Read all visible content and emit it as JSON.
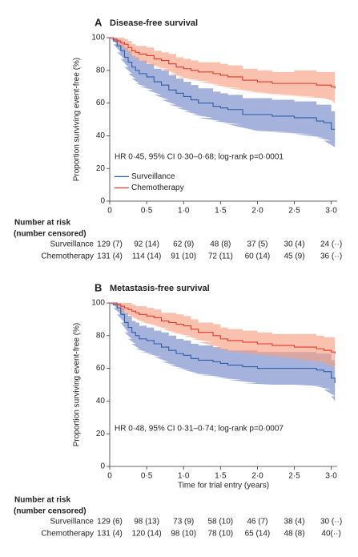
{
  "chart_data": [
    {
      "type": "line",
      "step": "post",
      "panel": "A",
      "title": "Disease-free survival",
      "ylabel": "Proportion surviving event-free (%)",
      "annotation": "HR 0·45, 95% CI 0·30–0·68; log-rank p=0·0001",
      "legend": "lower-left",
      "xlim": [
        0,
        3.08
      ],
      "ylim": [
        0,
        100
      ],
      "xticks": [
        0,
        {
          "value": 0.5,
          "label": "0·5"
        },
        {
          "value": 1,
          "label": "1·0"
        },
        {
          "value": 1.5,
          "label": "1·5"
        },
        {
          "value": 2,
          "label": "2·0"
        },
        {
          "value": 2.5,
          "label": "2·5"
        },
        {
          "value": 3,
          "label": "3·0"
        }
      ],
      "yticks": [
        0,
        20,
        40,
        60,
        80,
        100
      ],
      "x": [
        0,
        0.05,
        0.1,
        0.15,
        0.2,
        0.25,
        0.3,
        0.35,
        0.4,
        0.5,
        0.6,
        0.7,
        0.8,
        0.9,
        1.0,
        1.1,
        1.2,
        1.4,
        1.5,
        1.6,
        1.8,
        2.0,
        2.2,
        2.5,
        2.8,
        2.9,
        3.0,
        3.05
      ],
      "series": [
        {
          "name": "Surveillance",
          "color": "#2f5ea8",
          "band_color": "#7389c9",
          "values": [
            100,
            98,
            95,
            92,
            88,
            85,
            82,
            80,
            78,
            76,
            73,
            71,
            68,
            66,
            64,
            62,
            60,
            58,
            57,
            56,
            53,
            53,
            52,
            51,
            49,
            48,
            44,
            44
          ],
          "ci_upper": [
            100,
            100,
            99,
            97,
            94,
            92,
            89,
            88,
            86,
            84,
            81,
            80,
            77,
            75,
            73,
            71,
            69,
            67,
            66,
            65,
            63,
            63,
            62,
            61,
            59,
            59,
            55,
            55
          ],
          "ci_lower": [
            100,
            96,
            91,
            87,
            82,
            78,
            75,
            72,
            70,
            68,
            65,
            62,
            59,
            57,
            55,
            53,
            51,
            49,
            48,
            47,
            43,
            43,
            42,
            41,
            39,
            37,
            33,
            33
          ]
        },
        {
          "name": "Chemotherapy",
          "color": "#e2382b",
          "band_color": "#f7a083",
          "values": [
            100,
            99,
            98,
            97,
            96,
            94,
            92,
            91,
            90,
            89,
            87,
            86,
            84,
            82,
            81,
            80,
            79,
            78,
            77,
            76,
            74,
            73,
            72,
            72,
            71,
            71,
            70,
            69
          ],
          "ci_upper": [
            100,
            100,
            100,
            100,
            99,
            98,
            96,
            95,
            95,
            94,
            92,
            91,
            90,
            88,
            87,
            86,
            85,
            85,
            84,
            83,
            81,
            80,
            79,
            80,
            79,
            79,
            79,
            78
          ],
          "ci_lower": [
            100,
            98,
            96,
            94,
            93,
            90,
            88,
            87,
            85,
            84,
            82,
            81,
            78,
            76,
            75,
            74,
            73,
            71,
            70,
            69,
            67,
            66,
            65,
            64,
            63,
            63,
            61,
            60
          ]
        }
      ],
      "risk_table": {
        "title": [
          "Number at risk",
          "(number censored)"
        ],
        "rows": [
          {
            "name": "Surveillance",
            "values": [
              "129 (7)",
              "92 (14)",
              "62 (9)",
              "48 (8)",
              "37 (5)",
              "30 (4)",
              "24 (··)"
            ]
          },
          {
            "name": "Chemotherapy",
            "values": [
              "131 (4)",
              "114 (14)",
              "91 (10)",
              "72 (11)",
              "60 (14)",
              "45 (9)",
              "36 (··)"
            ]
          }
        ]
      }
    },
    {
      "type": "line",
      "step": "post",
      "panel": "B",
      "title": "Metastasis-free survival",
      "ylabel": "Proportion surviving event-free (%)",
      "xlabel": "Time for trial entry (years)",
      "annotation": "HR 0·48, 95% CI 0·31–0·74; log-rank p=0·0007",
      "xlim": [
        0,
        3.08
      ],
      "ylim": [
        0,
        100
      ],
      "xticks": [
        0,
        {
          "value": 0.5,
          "label": "0·5"
        },
        {
          "value": 1,
          "label": "1·0"
        },
        {
          "value": 1.5,
          "label": "1·5"
        },
        {
          "value": 2,
          "label": "2·0"
        },
        {
          "value": 2.5,
          "label": "2·5"
        },
        {
          "value": 3,
          "label": "3·0"
        }
      ],
      "yticks": [
        0,
        20,
        40,
        60,
        80,
        100
      ],
      "x": [
        0,
        0.05,
        0.1,
        0.15,
        0.2,
        0.25,
        0.3,
        0.35,
        0.4,
        0.5,
        0.6,
        0.7,
        0.8,
        0.9,
        1.0,
        1.1,
        1.2,
        1.4,
        1.5,
        1.6,
        1.8,
        2.0,
        2.2,
        2.5,
        2.8,
        2.9,
        3.0,
        3.05
      ],
      "series": [
        {
          "color": "#2f5ea8",
          "band_color": "#7389c9",
          "values": [
            100,
            99,
            97,
            93,
            88,
            85,
            82,
            80,
            78,
            77,
            75,
            73,
            71,
            69,
            68,
            66,
            65,
            64,
            63,
            62,
            61,
            60,
            60,
            60,
            59,
            58,
            54,
            51
          ],
          "ci_upper": [
            100,
            100,
            100,
            98,
            94,
            92,
            89,
            88,
            86,
            85,
            83,
            82,
            80,
            78,
            77,
            75,
            74,
            73,
            72,
            71,
            71,
            70,
            70,
            70,
            69,
            69,
            65,
            62
          ],
          "ci_lower": [
            100,
            97,
            93,
            88,
            82,
            78,
            75,
            72,
            70,
            69,
            67,
            64,
            62,
            60,
            59,
            57,
            56,
            55,
            54,
            53,
            51,
            50,
            50,
            50,
            49,
            47,
            43,
            40
          ]
        },
        {
          "color": "#e2382b",
          "band_color": "#f7a083",
          "values": [
            100,
            100,
            99,
            98,
            97,
            96,
            95,
            94,
            93,
            92,
            91,
            89,
            88,
            87,
            86,
            84,
            82,
            80,
            78,
            77,
            76,
            75,
            74,
            73,
            72,
            71,
            70,
            69
          ],
          "ci_upper": [
            100,
            100,
            100,
            100,
            100,
            100,
            99,
            98,
            98,
            97,
            96,
            94,
            94,
            93,
            92,
            90,
            88,
            87,
            85,
            84,
            83,
            82,
            81,
            81,
            80,
            79,
            79,
            78
          ],
          "ci_lower": [
            100,
            99,
            97,
            95,
            94,
            92,
            91,
            90,
            88,
            87,
            86,
            84,
            82,
            81,
            80,
            78,
            76,
            73,
            71,
            70,
            69,
            68,
            67,
            65,
            64,
            63,
            61,
            60
          ]
        }
      ],
      "risk_table": {
        "title": [
          "Number at risk",
          "(number censored)"
        ],
        "rows": [
          {
            "name": "Surveillance",
            "values": [
              "129 (6)",
              "98 (13)",
              "73 (9)",
              "58 (10)",
              "46 (7)",
              "38 (4)",
              "30 (··)"
            ]
          },
          {
            "name": "Chemotherapy",
            "values": [
              "131 (4)",
              "120 (14)",
              "98 (10)",
              "78 (10)",
              "65 (14)",
              "48 (8)",
              "40(··)"
            ]
          }
        ]
      }
    }
  ]
}
